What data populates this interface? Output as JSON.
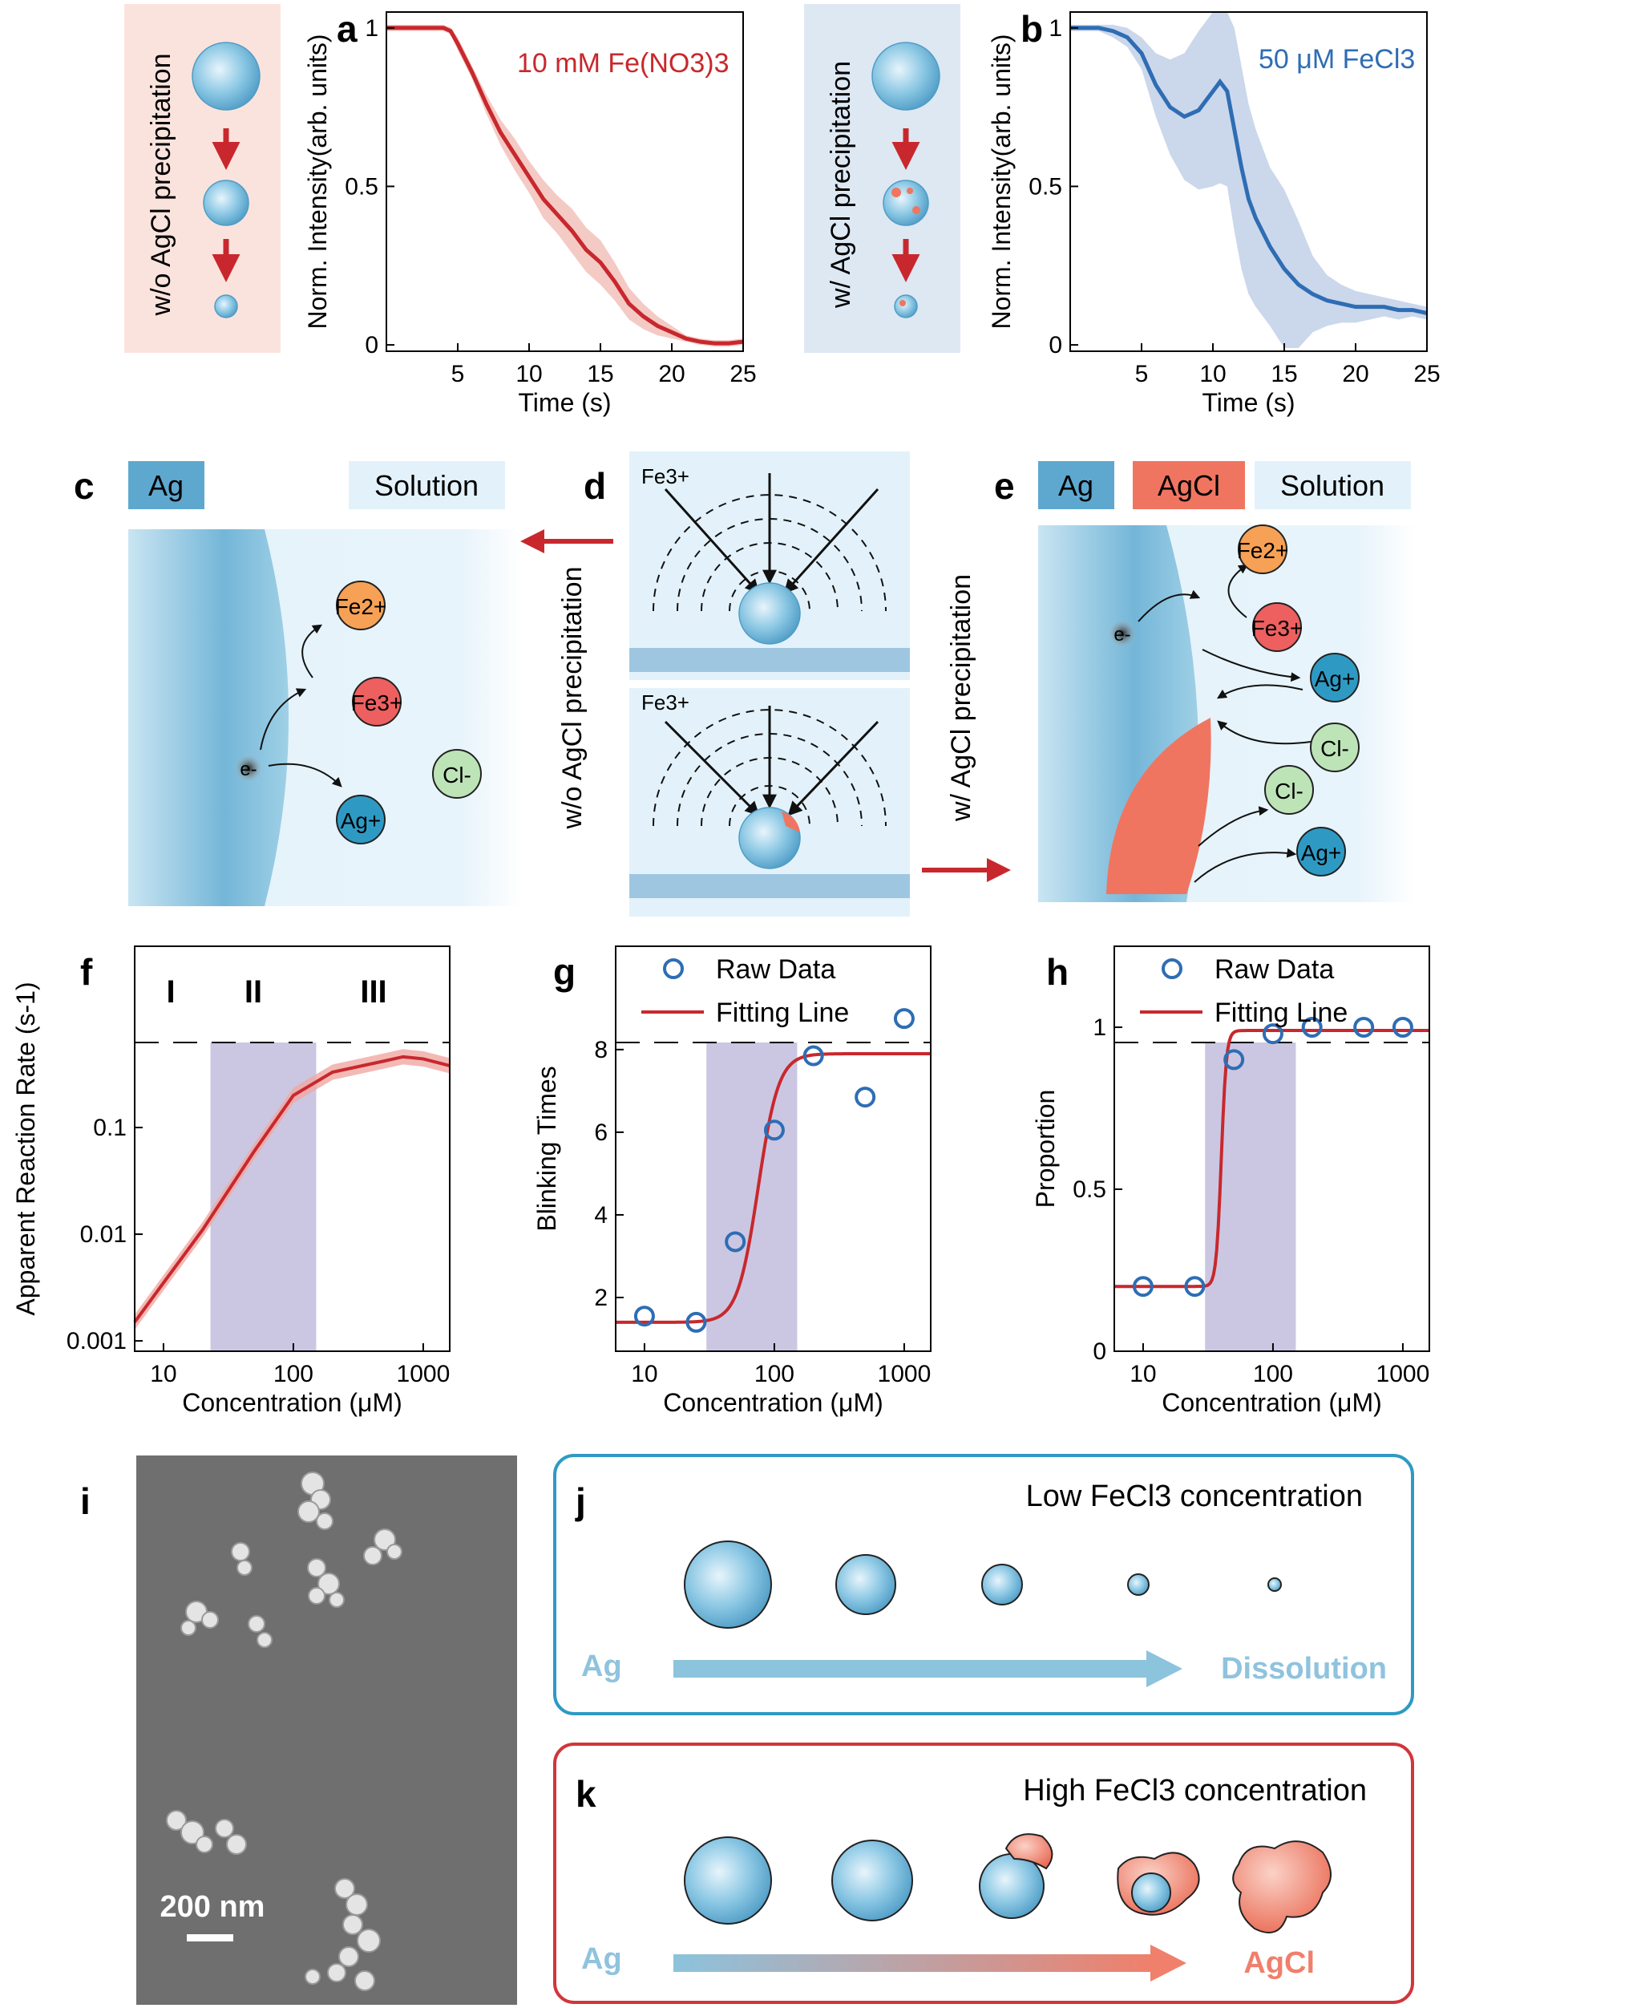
{
  "panel_labels": {
    "a": "a",
    "b": "b",
    "c": "c",
    "d": "d",
    "e": "e",
    "f": "f",
    "g": "g",
    "h": "h",
    "i": "i",
    "j": "j",
    "k": "k"
  },
  "colors": {
    "red": "#c8282d",
    "blue": "#2e6db4",
    "ag": "#5ea8cf",
    "agcl": "#f07560",
    "shade_red": "#fbe3dd",
    "shade_blue": "#dde8f3",
    "band": "#b9b4d8",
    "cyan": "#2e9ac4"
  },
  "schematic_ab": {
    "left_caption": "w/o AgCl precipitation",
    "right_caption": "w/ AgCl precipitation"
  },
  "panel_cde": {
    "c_ag": "Ag",
    "c_solution": "Solution",
    "e_ag": "Ag",
    "e_agcl": "AgCl",
    "e_solution": "Solution",
    "d_fe_top": "Fe3+",
    "d_fe_bottom": "Fe3+",
    "d_left_caption": "w/o AgCl precipitation",
    "d_right_caption": "w/ AgCl precipitation",
    "ions": {
      "fe2": "Fe2+",
      "fe3": "Fe3+",
      "ag": "Ag+",
      "cl": "Cl-",
      "e": "e-"
    }
  },
  "panel_i": {
    "scale_bar": "200 nm"
  },
  "panel_j": {
    "title": "Low FeCl3 concentration",
    "start": "Ag",
    "end": "Dissolution"
  },
  "panel_k": {
    "title": "High FeCl3 concentration",
    "start": "Ag",
    "end": "AgCl"
  },
  "chart_data": [
    {
      "id": "a",
      "type": "line",
      "annotation": "10 mM Fe(NO3)3",
      "xlabel": "Time (s)",
      "ylabel": "Norm. Intensity(arb. units)",
      "xlim": [
        0,
        25
      ],
      "ylim": [
        -0.02,
        1.05
      ],
      "xticks": [
        5,
        10,
        15,
        20,
        25
      ],
      "yticks": [
        0,
        0.5,
        1
      ],
      "ytick_labels": [
        "0",
        "0.5",
        "1"
      ],
      "series": [
        {
          "x": [
            0,
            2,
            4,
            4.5,
            5,
            6,
            7,
            8,
            9,
            10,
            11,
            12,
            13,
            14,
            15,
            16,
            17,
            18,
            19,
            20,
            21,
            22,
            23,
            24,
            25
          ],
          "y": [
            1,
            1,
            1,
            0.99,
            0.95,
            0.86,
            0.76,
            0.67,
            0.6,
            0.53,
            0.46,
            0.41,
            0.36,
            0.3,
            0.26,
            0.2,
            0.13,
            0.09,
            0.06,
            0.04,
            0.02,
            0.01,
            0.005,
            0.005,
            0.01
          ]
        }
      ],
      "band": [
        0.01,
        0.01,
        0.01,
        0.01,
        0.02,
        0.02,
        0.03,
        0.04,
        0.05,
        0.05,
        0.06,
        0.06,
        0.07,
        0.07,
        0.07,
        0.06,
        0.05,
        0.04,
        0.03,
        0.02,
        0.01,
        0.01,
        0.01,
        0.01,
        0.01
      ]
    },
    {
      "id": "b",
      "type": "line",
      "annotation": "50 μM FeCl3",
      "xlabel": "Time (s)",
      "ylabel": "Norm. Intensity(arb. units)",
      "xlim": [
        0,
        25
      ],
      "ylim": [
        -0.02,
        1.05
      ],
      "xticks": [
        5,
        10,
        15,
        20,
        25
      ],
      "yticks": [
        0,
        0.5,
        1
      ],
      "ytick_labels": [
        "0",
        "0.5",
        "1"
      ],
      "series": [
        {
          "x": [
            0,
            2,
            3,
            4,
            5,
            6,
            7,
            8,
            9,
            10,
            10.5,
            11,
            11.5,
            12,
            12.5,
            13,
            14,
            15,
            16,
            17,
            18,
            19,
            20,
            21,
            22,
            23,
            24,
            25
          ],
          "y": [
            1,
            1,
            0.99,
            0.97,
            0.92,
            0.82,
            0.75,
            0.72,
            0.74,
            0.8,
            0.83,
            0.8,
            0.68,
            0.56,
            0.46,
            0.4,
            0.31,
            0.24,
            0.19,
            0.16,
            0.14,
            0.13,
            0.12,
            0.12,
            0.12,
            0.11,
            0.11,
            0.1
          ]
        }
      ],
      "band": [
        0.01,
        0.01,
        0.02,
        0.03,
        0.05,
        0.1,
        0.15,
        0.2,
        0.25,
        0.3,
        0.32,
        0.3,
        0.32,
        0.32,
        0.3,
        0.28,
        0.25,
        0.25,
        0.2,
        0.12,
        0.08,
        0.06,
        0.05,
        0.04,
        0.03,
        0.03,
        0.02,
        0.02
      ]
    },
    {
      "id": "f",
      "type": "line",
      "xlabel": "Concentration (μM)",
      "ylabel": "Apparent Reaction Rate (s-1)",
      "xscale": "log",
      "yscale": "log",
      "xlim": [
        6,
        1600
      ],
      "ylim": [
        0.0008,
        5
      ],
      "xticks": [
        10,
        100,
        1000
      ],
      "yticks": [
        0.001,
        0.01,
        0.1
      ],
      "ytick_labels": [
        "0.001",
        "0.01",
        "0.1"
      ],
      "regions": [
        "I",
        "II",
        "III"
      ],
      "shaded_range": [
        23,
        150
      ],
      "series": [
        {
          "x": [
            6,
            10,
            20,
            50,
            100,
            200,
            500,
            700,
            1000,
            1600
          ],
          "y": [
            0.0015,
            0.0035,
            0.011,
            0.06,
            0.2,
            0.33,
            0.42,
            0.46,
            0.44,
            0.38
          ]
        }
      ]
    },
    {
      "id": "g",
      "type": "scatter",
      "xlabel": "Concentration (μM)",
      "ylabel": "Blinking Times",
      "xscale": "log",
      "xlim": [
        6,
        1600
      ],
      "ylim": [
        0.7,
        10.5
      ],
      "xticks": [
        10,
        100,
        1000
      ],
      "yticks": [
        2,
        4,
        6,
        8
      ],
      "ytick_labels": [
        "2",
        "4",
        "6",
        "8"
      ],
      "legend": [
        "Raw Data",
        "Fitting Line"
      ],
      "shaded_range": [
        30,
        150
      ],
      "raw": {
        "x": [
          10,
          25,
          50,
          100,
          200,
          500,
          1000
        ],
        "y": [
          1.55,
          1.4,
          3.35,
          6.05,
          7.85,
          6.85,
          8.75
        ]
      },
      "fit": {
        "type": "sigmoid",
        "low": 1.4,
        "high": 7.9,
        "x0": 75,
        "slope": 5.5
      }
    },
    {
      "id": "h",
      "type": "scatter",
      "xlabel": "Concentration (μM)",
      "ylabel": "Proportion",
      "xscale": "log",
      "xlim": [
        6,
        1600
      ],
      "ylim": [
        0,
        1.25
      ],
      "xticks": [
        10,
        100,
        1000
      ],
      "yticks": [
        0,
        0.5,
        1
      ],
      "ytick_labels": [
        "0",
        "0.5",
        "1"
      ],
      "legend": [
        "Raw Data",
        "Fitting Line"
      ],
      "shaded_range": [
        30,
        150
      ],
      "raw": {
        "x": [
          10,
          25,
          50,
          100,
          200,
          500,
          1000
        ],
        "y": [
          0.2,
          0.2,
          0.9,
          0.98,
          1.0,
          1.0,
          1.0
        ]
      },
      "fit": {
        "type": "sigmoid",
        "low": 0.2,
        "high": 0.99,
        "x0": 40,
        "slope": 22
      }
    }
  ]
}
